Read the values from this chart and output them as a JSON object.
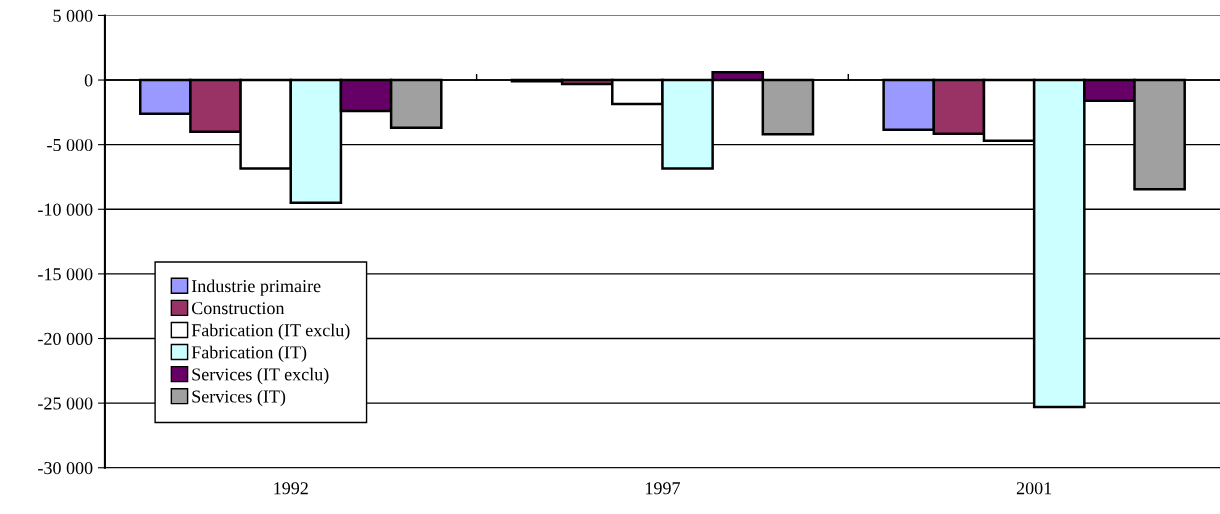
{
  "chart_data": {
    "type": "bar",
    "categories": [
      "1992",
      "1997",
      "2001"
    ],
    "series": [
      {
        "name": "Industrie primaire",
        "color": "#9999ff",
        "values": [
          -2600,
          -100,
          -3850
        ]
      },
      {
        "name": "Construction",
        "color": "#993366",
        "values": [
          -4000,
          -300,
          -4150
        ]
      },
      {
        "name": "Fabrication (IT exclu)",
        "color": "#ffffff",
        "values": [
          -6850,
          -1850,
          -4700
        ]
      },
      {
        "name": "Fabrication (IT)",
        "color": "#ccffff",
        "values": [
          -9500,
          -6850,
          -25300
        ]
      },
      {
        "name": "Services (IT exclu)",
        "color": "#660066",
        "values": [
          -2400,
          600,
          -1600
        ]
      },
      {
        "name": "Services (IT)",
        "color": "#a0a0a0",
        "values": [
          -3700,
          -4200,
          -8450
        ]
      }
    ],
    "ylim": [
      -30000,
      5000
    ],
    "yticks": [
      {
        "value": -30000,
        "label": "-30 000"
      },
      {
        "value": -25000,
        "label": "-25 000"
      },
      {
        "value": -20000,
        "label": "-20 000"
      },
      {
        "value": -15000,
        "label": "-15 000"
      },
      {
        "value": -10000,
        "label": "-10 000"
      },
      {
        "value": -5000,
        "label": "-5 000"
      },
      {
        "value": 0,
        "label": "0"
      },
      {
        "value": 5000,
        "label": "5 000"
      }
    ],
    "grid": "y",
    "legend": "bottom left"
  }
}
